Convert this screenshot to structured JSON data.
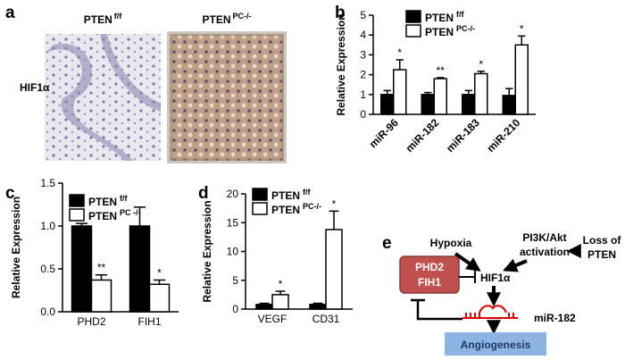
{
  "figure_a": {
    "panel": "a",
    "row_label": "HIF1α",
    "columns": [
      {
        "name": "PTEN",
        "superscript": "f/f"
      },
      {
        "name": "PTEN",
        "superscript": "PC-/-"
      }
    ]
  },
  "chart_data": [
    {
      "type": "bar",
      "panel": "b",
      "ylabel": "Relative Expression",
      "categories": [
        "miR-96",
        "miR-182",
        "miR-183",
        "miR-210"
      ],
      "series": [
        {
          "name": "PTEN",
          "superscript": "f/f",
          "color": "#000000",
          "values": [
            1.0,
            1.0,
            1.0,
            0.95
          ],
          "errors": [
            0.2,
            0.1,
            0.2,
            0.35
          ]
        },
        {
          "name": "PTEN",
          "superscript": "PC-/-",
          "color": "#ffffff",
          "values": [
            2.25,
            1.8,
            2.05,
            3.5
          ],
          "errors": [
            0.5,
            0.05,
            0.12,
            0.45
          ]
        }
      ],
      "significance": [
        "*",
        "**",
        "*",
        "*"
      ],
      "ylim": [
        0,
        5
      ],
      "yticks": [
        0,
        1,
        2,
        3,
        4,
        5
      ]
    },
    {
      "type": "bar",
      "panel": "c",
      "ylabel": "Relative Expression",
      "categories": [
        "PHD2",
        "FIH1"
      ],
      "series": [
        {
          "name": "PTEN",
          "superscript": "f/f",
          "color": "#000000",
          "values": [
            1.0,
            1.0
          ],
          "errors": [
            0.03,
            0.22
          ]
        },
        {
          "name": "PTEN",
          "superscript": "PC -/-",
          "color": "#ffffff",
          "values": [
            0.37,
            0.32
          ],
          "errors": [
            0.06,
            0.05
          ]
        }
      ],
      "significance": [
        "**",
        "*"
      ],
      "ylim": [
        0,
        1.5
      ],
      "yticks": [
        {
          "value": 0,
          "label": "0.0"
        },
        {
          "value": 0.5,
          "label": "0.5"
        },
        {
          "value": 1,
          "label": "1.0"
        },
        {
          "value": 1.5,
          "label": "1.5"
        }
      ]
    },
    {
      "type": "bar",
      "panel": "d",
      "ylabel": "Relative Expression",
      "categories": [
        "VEGF",
        "CD31"
      ],
      "series": [
        {
          "name": "PTEN",
          "superscript": "f/f",
          "color": "#000000",
          "values": [
            0.8,
            0.8
          ],
          "errors": [
            0.2,
            0.2
          ]
        },
        {
          "name": "PTEN",
          "superscript": "PC-/-",
          "color": "#ffffff",
          "values": [
            2.5,
            13.8
          ],
          "errors": [
            0.6,
            3.2
          ]
        }
      ],
      "significance": [
        "*",
        "*"
      ],
      "ylim": [
        0,
        20
      ],
      "yticks": [
        0,
        5,
        10,
        15,
        20
      ]
    }
  ],
  "diagram_e": {
    "panel": "e",
    "nodes": [
      "Hypoxia",
      "PI3K/Akt",
      "activation",
      "Loss of",
      "PTEN",
      "PHD2",
      "FIH1",
      "HIF1α",
      "miR-182",
      "Angiogenesis"
    ]
  }
}
